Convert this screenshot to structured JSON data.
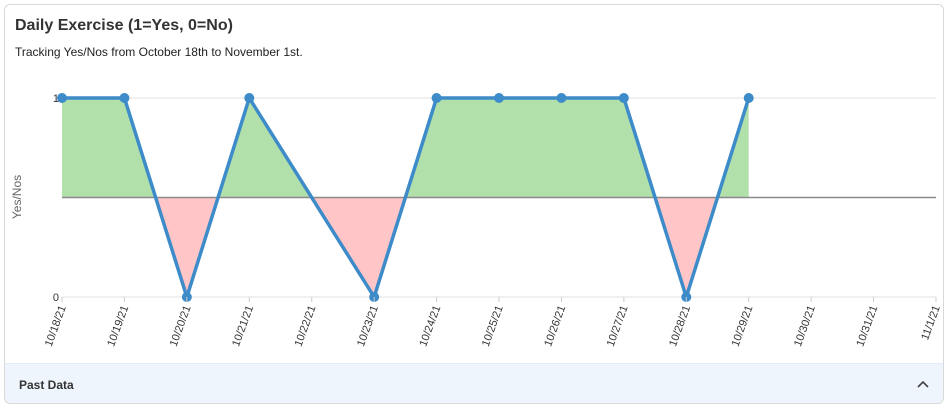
{
  "card": {
    "title": "Daily Exercise (1=Yes, 0=No)",
    "subtitle": "Tracking Yes/Nos from October 18th to November 1st."
  },
  "footer": {
    "label": "Past Data",
    "toggle_icon": "chevron-up-icon"
  },
  "colors": {
    "line": "#3d8bc9",
    "above_fill": "#b2e0ab",
    "below_fill": "#ffc5c7",
    "baseline": "#8a8a8a",
    "grid": "#e0e0e0"
  },
  "chart_data": {
    "type": "area",
    "title": "Daily Exercise (1=Yes, 0=No)",
    "subtitle": "Tracking Yes/Nos from October 18th to November 1st.",
    "xlabel": "",
    "ylabel": "Yes/Nos",
    "ylim": [
      0,
      1
    ],
    "yticks": [
      "0",
      "1"
    ],
    "baseline": 0.5,
    "categories": [
      "10/18/21",
      "10/19/21",
      "10/20/21",
      "10/21/21",
      "10/22/21",
      "10/23/21",
      "10/24/21",
      "10/25/21",
      "10/26/21",
      "10/27/21",
      "10/28/21",
      "10/29/21",
      "10/30/21",
      "10/31/21",
      "11/1/21"
    ],
    "series": [
      {
        "values": [
          1,
          1,
          0,
          1,
          null,
          0,
          1,
          1,
          1,
          1,
          0,
          1,
          null,
          null,
          null
        ]
      }
    ],
    "grid": true
  }
}
